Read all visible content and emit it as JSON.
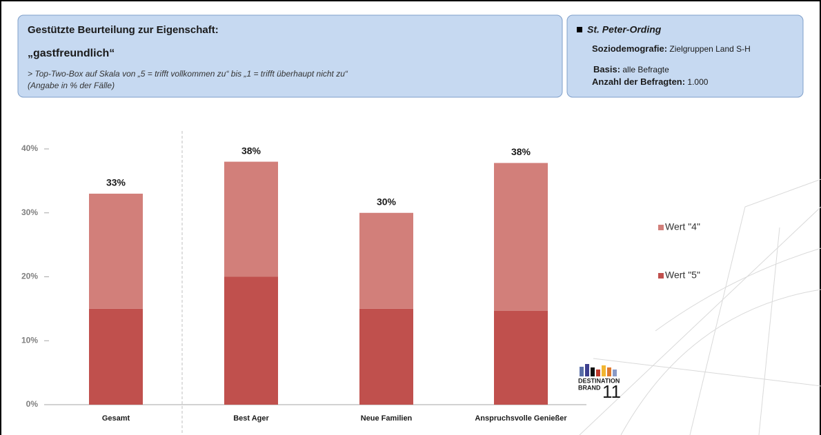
{
  "header": {
    "title": "Gestützte Beurteilung zur Eigenschaft:",
    "attribute": "„gastfreundlich“",
    "scale_note": "> Top-Two-Box auf Skala von „5 = trifft vollkommen zu“ bis „1 = trifft überhaupt nicht zu“",
    "unit_note": "(Angabe in % der Fälle)"
  },
  "info": {
    "place": "St. Peter-Ording",
    "items": [
      {
        "label": "Soziodemografie:",
        "value": "Zielgruppen Land S-H"
      },
      {
        "label": "Basis:",
        "value": "alle Befragte"
      },
      {
        "label": "Anzahl der Befragten:",
        "value": "1.000"
      }
    ]
  },
  "chart_data": {
    "type": "stacked_bar",
    "categories": [
      "Gesamt",
      "Best Ager",
      "Neue Familien",
      "Anspruchsvolle Genießer"
    ],
    "series": [
      {
        "name": "Wert \"5\"",
        "color": "#c0504d",
        "values": [
          15,
          20,
          15,
          14.7
        ]
      },
      {
        "name": "Wert \"4\"",
        "color": "#d27f7a",
        "values": [
          18,
          18,
          15,
          23.1
        ]
      }
    ],
    "total_labels": [
      "33%",
      "38%",
      "30%",
      "38%"
    ],
    "ylim": [
      0,
      40
    ],
    "yticks": [
      {
        "value": 0,
        "label": "0%"
      },
      {
        "value": 10,
        "label": "10%"
      },
      {
        "value": 20,
        "label": "20%"
      },
      {
        "value": 30,
        "label": "30%"
      },
      {
        "value": 40,
        "label": "40%"
      }
    ],
    "legend": "right"
  },
  "logo": {
    "line1": "DESTINATION",
    "line2": "BRAND",
    "number": "11"
  }
}
